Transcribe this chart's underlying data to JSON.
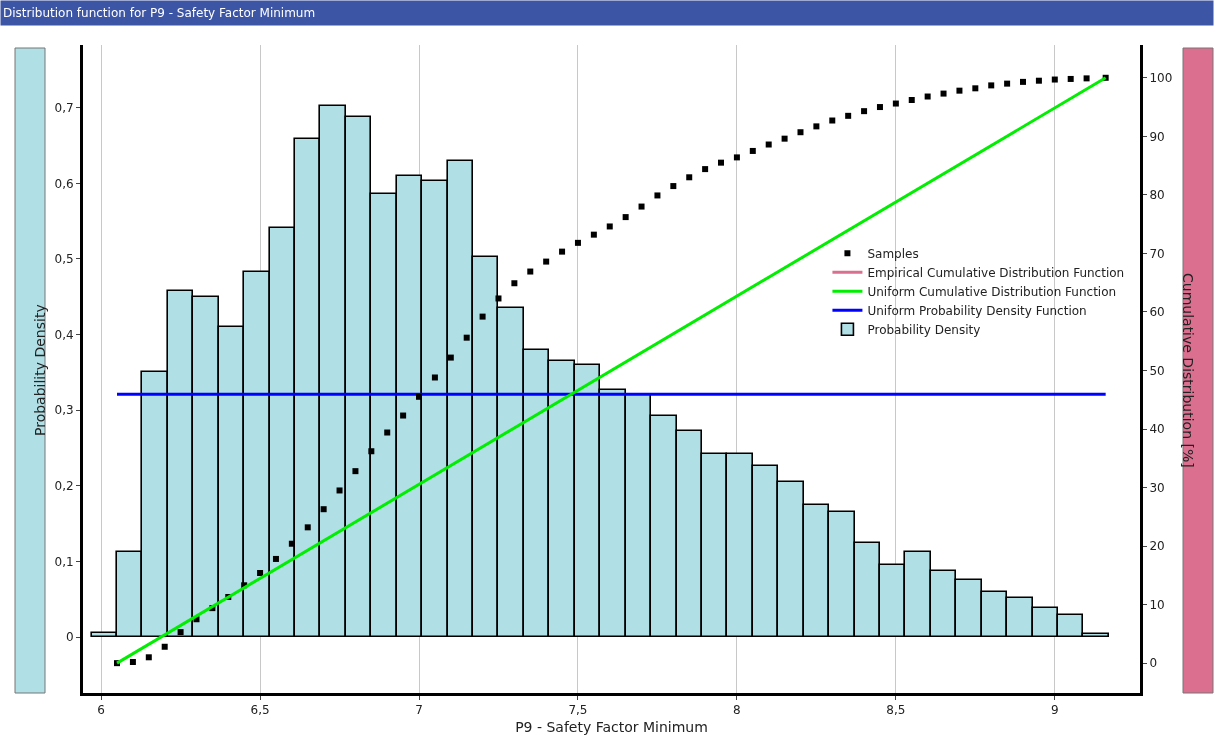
{
  "chart_data": {
    "type": "histogram",
    "title": "Distribution function for P9 - Safety Factor Minimum",
    "xlabel": "P9 - Safety Factor Minimum",
    "ylabel": "Probability Density",
    "y2label": "Cumulative Distribution [%]",
    "bins": [
      5.97,
      6.05,
      6.13,
      6.21,
      6.29,
      6.37,
      6.45,
      6.53,
      6.61,
      6.69,
      6.77,
      6.85,
      6.93,
      7.01,
      7.09,
      7.17,
      7.25,
      7.33,
      7.41,
      7.49,
      7.57,
      7.65,
      7.73,
      7.81,
      7.89,
      7.97,
      8.05,
      8.13,
      8.21,
      8.29,
      8.37,
      8.45,
      8.53,
      8.61,
      8.69,
      8.77,
      8.85,
      8.93,
      9.01,
      9.09,
      9.17
    ],
    "series": [
      {
        "name": "Samples",
        "type": "scatter",
        "axis": "y2",
        "color": "#000000",
        "marker": "square",
        "x": [
          6.05,
          6.1,
          6.15,
          6.2,
          6.25,
          6.3,
          6.35,
          6.4,
          6.45,
          6.5,
          6.55,
          6.6,
          6.65,
          6.7,
          6.75,
          6.8,
          6.85,
          6.9,
          6.95,
          7.0,
          7.05,
          7.1,
          7.15,
          7.2,
          7.25,
          7.3,
          7.35,
          7.4,
          7.45,
          7.5,
          7.55,
          7.6,
          7.65,
          7.7,
          7.75,
          7.8,
          7.85,
          7.9,
          7.95,
          8.0,
          8.05,
          8.1,
          8.15,
          8.2,
          8.25,
          8.3,
          8.35,
          8.4,
          8.45,
          8.5,
          8.55,
          8.6,
          8.65,
          8.7,
          8.75,
          8.8,
          8.85,
          8.9,
          8.95,
          9.0,
          9.05,
          9.1,
          9.16
        ],
        "values": [
          0,
          0.2,
          1.0,
          2.8,
          5.3,
          7.5,
          9.4,
          11.3,
          13.3,
          15.4,
          17.8,
          20.4,
          23.2,
          26.3,
          29.5,
          32.8,
          36.2,
          39.4,
          42.3,
          45.5,
          48.8,
          52.2,
          55.6,
          59.2,
          62.3,
          64.9,
          66.9,
          68.6,
          70.3,
          71.8,
          73.2,
          74.6,
          76.2,
          78.0,
          79.9,
          81.5,
          83.0,
          84.4,
          85.5,
          86.4,
          87.5,
          88.6,
          89.6,
          90.7,
          91.7,
          92.7,
          93.5,
          94.3,
          95.0,
          95.6,
          96.2,
          96.8,
          97.3,
          97.8,
          98.2,
          98.7,
          99.0,
          99.3,
          99.5,
          99.7,
          99.8,
          99.9,
          100
        ]
      },
      {
        "name": "Empirical Cumulative Distribution Function",
        "type": "line",
        "axis": "y2",
        "color": "#d9708f",
        "values": [
          null,
          null
        ]
      },
      {
        "name": "Uniform Cumulative Distribution Function",
        "type": "line",
        "axis": "y2",
        "color": "#00ee00",
        "x": [
          6.05,
          9.16
        ],
        "values": [
          0,
          100
        ]
      },
      {
        "name": "Uniform Probability Density Function",
        "type": "line",
        "color": "#0000ff",
        "x": [
          6.05,
          9.16
        ],
        "values": [
          0.321,
          0.321
        ]
      },
      {
        "name": "Probability Density",
        "color": "#b0dfe5",
        "values": [
          0.005,
          0.113,
          0.35,
          0.458,
          0.45,
          0.41,
          0.483,
          0.541,
          0.659,
          0.702,
          0.688,
          0.586,
          0.61,
          0.603,
          0.63,
          0.503,
          0.435,
          0.38,
          0.365,
          0.36,
          0.327,
          0.32,
          0.292,
          0.272,
          0.242,
          0.242,
          0.226,
          0.205,
          0.175,
          0.166,
          0.125,
          0.095,
          0.112,
          0.087,
          0.075,
          0.059,
          0.052,
          0.039,
          0.029,
          0.004
        ]
      }
    ],
    "xlim": [
      5.943,
      9.268
    ],
    "xticks": [
      6,
      {
        "value": 6.5,
        "label": "6,5"
      },
      7,
      {
        "value": 7.5,
        "label": "7,5"
      },
      8,
      {
        "value": 8.5,
        "label": "8,5"
      },
      9
    ],
    "ylim": [
      -0.074,
      0.783
    ],
    "yticks": [
      0,
      {
        "value": 0.1,
        "label": "0,1"
      },
      {
        "value": 0.2,
        "label": "0,2"
      },
      {
        "value": 0.3,
        "label": "0,3"
      },
      {
        "value": 0.4,
        "label": "0,4"
      },
      {
        "value": 0.5,
        "label": "0,5"
      },
      {
        "value": 0.6,
        "label": "0,6"
      },
      {
        "value": 0.7,
        "label": "0,7"
      }
    ],
    "y2lim": [
      -5.1,
      105.6
    ],
    "y2ticks": [
      0,
      10,
      20,
      30,
      40,
      50,
      60,
      70,
      80,
      90,
      100
    ],
    "grid": "x",
    "legend": "right"
  }
}
